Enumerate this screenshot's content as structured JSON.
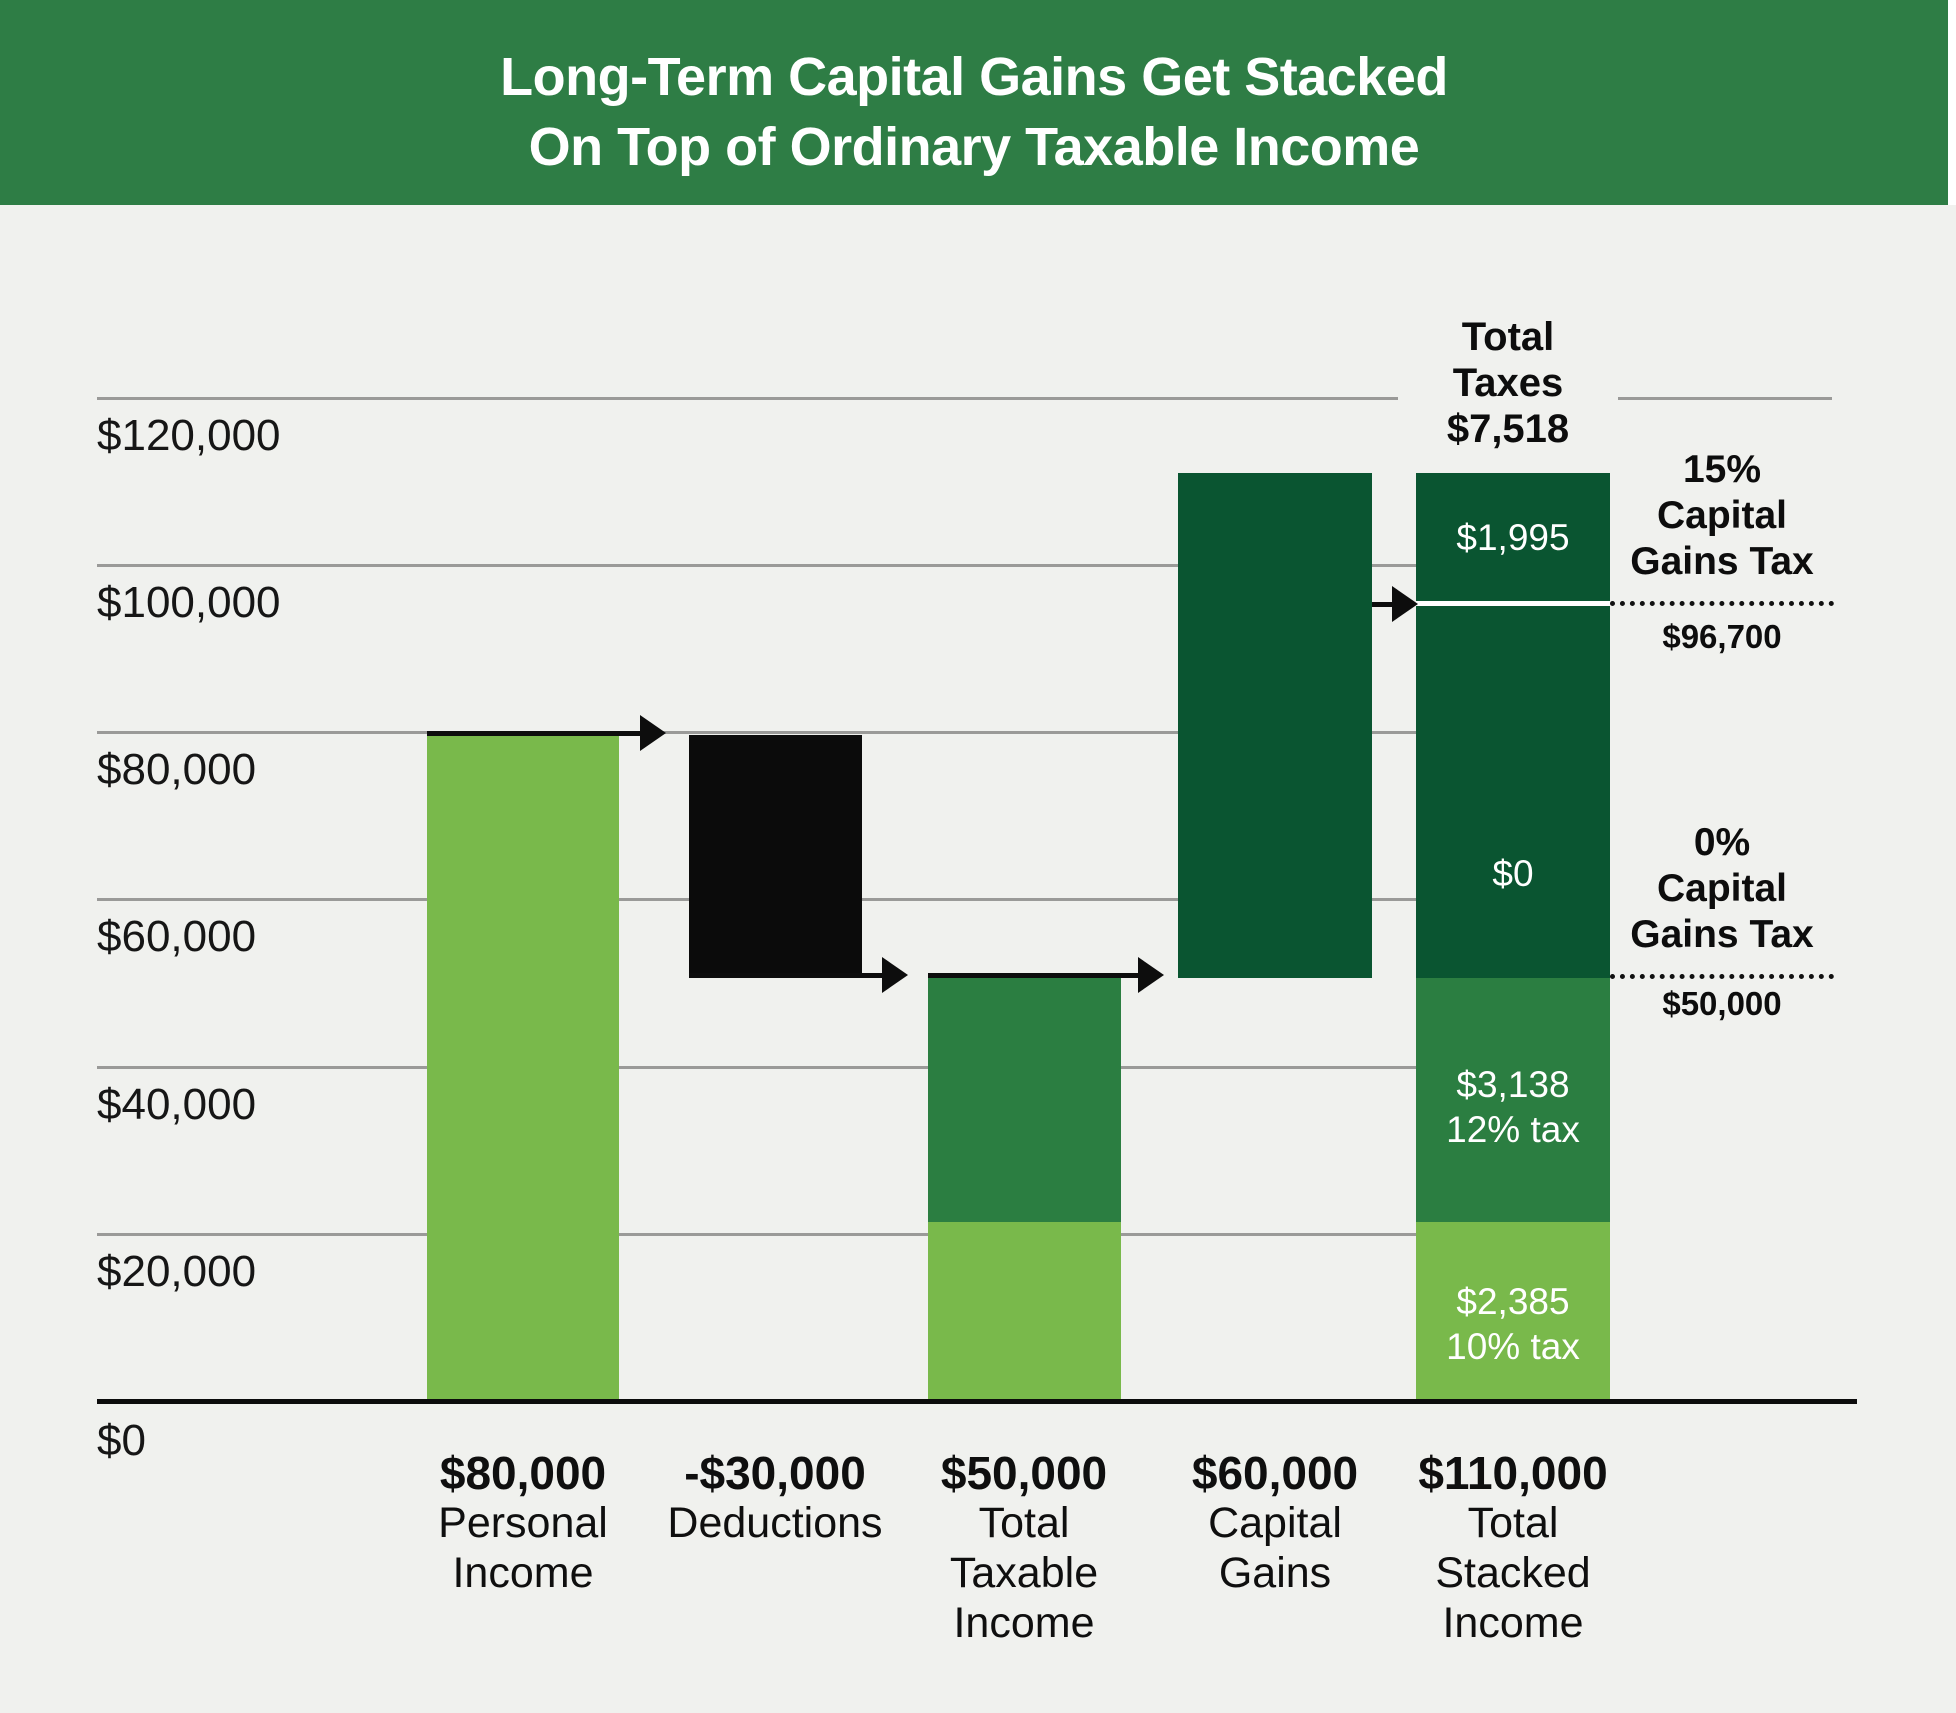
{
  "header": {
    "title_line1": "Long-Term Capital Gains Get Stacked",
    "title_line2": "On Top of Ordinary Taxable Income"
  },
  "colors": {
    "banner_green": "#2e7d45",
    "light_green": "#79b94b",
    "medium_green": "#2b7e41",
    "dark_green": "#0a5531",
    "deduction_black": "#0b0b0b",
    "background": "#f0f1ee",
    "gridline_gray": "#9a9a98"
  },
  "y_axis": {
    "labels": [
      "$120,000",
      "$100,000",
      "$80,000",
      "$60,000",
      "$40,000",
      "$20,000",
      "$0"
    ]
  },
  "bars": [
    {
      "value": "$80,000",
      "label_lines": [
        "Personal",
        "Income"
      ]
    },
    {
      "value": "-$30,000",
      "label_lines": [
        "Deductions"
      ]
    },
    {
      "value": "$50,000",
      "label_lines": [
        "Total",
        "Taxable",
        "Income"
      ]
    },
    {
      "value": "$60,000",
      "label_lines": [
        "Capital",
        "Gains"
      ]
    },
    {
      "value": "$110,000",
      "label_lines": [
        "Total",
        "Stacked",
        "Income"
      ]
    }
  ],
  "stack_labels": {
    "cg15_amount": "$1,995",
    "cg0_amount": "$0",
    "bracket12_amount": "$3,138",
    "bracket12_rate": "12% tax",
    "bracket10_amount": "$2,385",
    "bracket10_rate": "10% tax"
  },
  "right_annotations": {
    "total_taxes_line1": "Total",
    "total_taxes_line2": "Taxes",
    "total_taxes_value": "$7,518",
    "cg15_line1": "15%",
    "cg15_line2": "Capital",
    "cg15_line3": "Gains Tax",
    "cg15_threshold": "$96,700",
    "cg0_line1": "0%",
    "cg0_line2": "Capital",
    "cg0_line3": "Gains Tax",
    "cg0_threshold": "$50,000"
  },
  "chart_data": {
    "type": "bar",
    "subtype": "waterfall-stacked",
    "title": "Long-Term Capital Gains Get Stacked On Top of Ordinary Taxable Income",
    "xlabel": "",
    "ylabel": "",
    "ylim": [
      0,
      130000
    ],
    "ytick_interval": 20000,
    "ytick_labels": [
      "$0",
      "$20,000",
      "$40,000",
      "$60,000",
      "$80,000",
      "$100,000",
      "$120,000"
    ],
    "grid": true,
    "categories": [
      "$80,000 Personal Income",
      "-$30,000 Deductions",
      "$50,000 Total Taxable Income",
      "$60,000 Capital Gains",
      "$110,000 Total Stacked Income"
    ],
    "bars": [
      {
        "category": "Personal Income",
        "value": 80000,
        "start": 0,
        "end": 80000,
        "color": "light_green"
      },
      {
        "category": "Deductions",
        "value": -30000,
        "start": 80000,
        "end": 50000,
        "color": "black"
      },
      {
        "category": "Total Taxable Income",
        "value": 50000,
        "start": 0,
        "end": 50000,
        "segments": [
          {
            "from": 0,
            "to": 23850,
            "color": "light_green"
          },
          {
            "from": 23850,
            "to": 50000,
            "color": "medium_green"
          }
        ]
      },
      {
        "category": "Capital Gains",
        "value": 60000,
        "start": 50000,
        "end": 110000,
        "color": "dark_green"
      },
      {
        "category": "Total Stacked Income",
        "value": 110000,
        "start": 0,
        "end": 110000,
        "segments": [
          {
            "from": 0,
            "to": 23850,
            "color": "light_green",
            "tax_amount": 2385,
            "tax_label": "$2,385 10% tax"
          },
          {
            "from": 23850,
            "to": 50000,
            "color": "medium_green",
            "tax_amount": 3138,
            "tax_label": "$3,138 12% tax"
          },
          {
            "from": 50000,
            "to": 96700,
            "color": "dark_green",
            "tax_amount": 0,
            "tax_label": "$0"
          },
          {
            "from": 96700,
            "to": 110000,
            "color": "dark_green",
            "tax_amount": 1995,
            "tax_label": "$1,995"
          }
        ]
      }
    ],
    "annotations": {
      "total_taxes": 7518,
      "capital_gains_15pct_threshold": 96700,
      "capital_gains_0pct_threshold": 50000
    },
    "legend_position": "none"
  }
}
